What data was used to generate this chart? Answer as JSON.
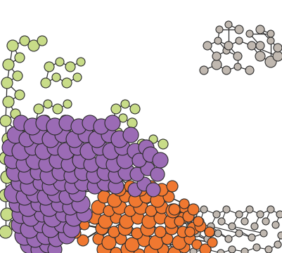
{
  "bg_color": "#ffffff",
  "colors": {
    "orange": "#F07830",
    "purple": "#9B6BB5",
    "green": "#C8DC88",
    "gray": "#C0B8B0"
  },
  "node_edge_color": "#2a2a2a",
  "node_edge_width": 0.8,
  "stick_color": "#2a2a2a",
  "stick_lw": 1.2,
  "figsize": [
    4.02,
    3.6
  ],
  "dpi": 100
}
